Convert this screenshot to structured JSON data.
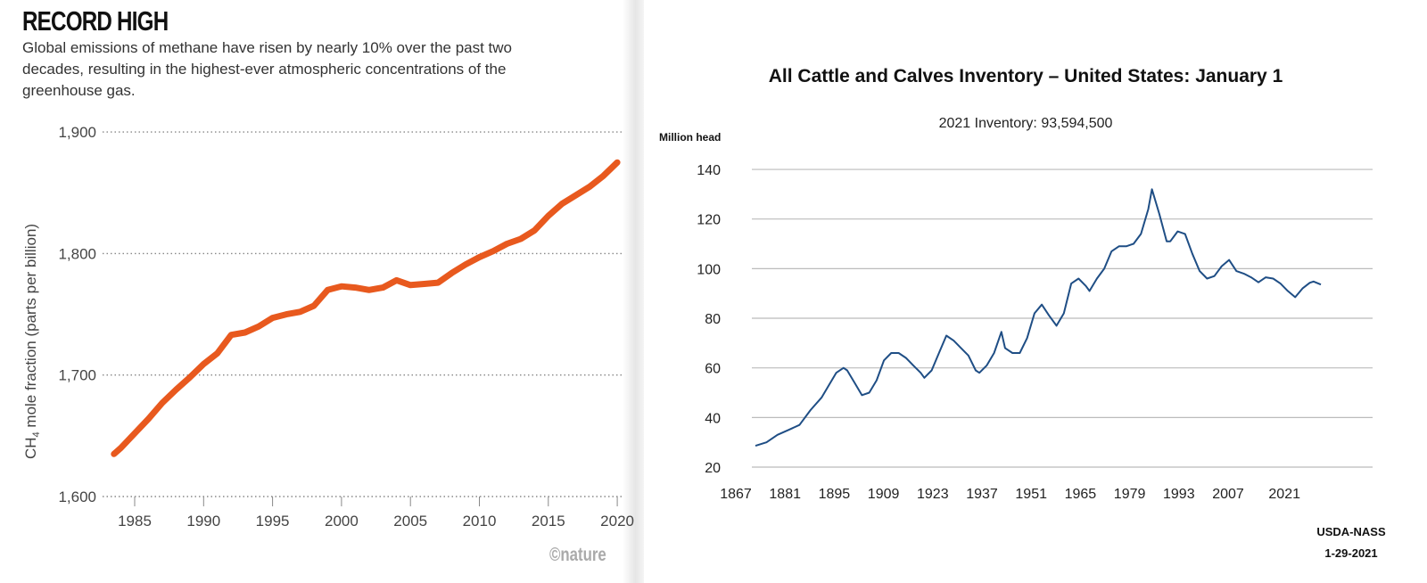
{
  "chart_data": [
    {
      "type": "line",
      "title": "RECORD HIGH",
      "subtitle": "Global emissions of methane have risen by nearly 10% over the past two decades, resulting in the highest-ever atmospheric concentrations of the greenhouse gas.",
      "xlabel": "",
      "ylabel": "CH4 mole fraction (parts per billion)",
      "ylabel_main": "CH",
      "ylabel_sub": "4",
      "ylabel_rest": " mole fraction (parts per billion)",
      "xlim": [
        1982,
        2021
      ],
      "ylim": [
        1600,
        1900
      ],
      "x_ticks": [
        "1985",
        "1990",
        "1995",
        "2000",
        "2005",
        "2010",
        "2015",
        "2020"
      ],
      "x_tick_values": [
        1985,
        1990,
        1995,
        2000,
        2005,
        2010,
        2015,
        2020
      ],
      "y_ticks": [
        "1,600",
        "1,700",
        "1,800",
        "1,900"
      ],
      "y_tick_values": [
        1600,
        1700,
        1800,
        1900
      ],
      "grid": "horizontal dotted",
      "credit": "©nature",
      "line_color": "#e8591e",
      "series": [
        {
          "name": "CH4",
          "x": [
            1983.5,
            1984,
            1985,
            1986,
            1987,
            1988,
            1989,
            1990,
            1991,
            1992,
            1993,
            1994,
            1995,
            1996,
            1997,
            1998,
            1999,
            2000,
            2001,
            2002,
            2003,
            2004,
            2005,
            2006,
            2007,
            2008,
            2009,
            2010,
            2011,
            2012,
            2013,
            2014,
            2015,
            2016,
            2017,
            2018,
            2019,
            2020
          ],
          "y": [
            1635,
            1640,
            1652,
            1664,
            1677,
            1688,
            1698,
            1709,
            1718,
            1733,
            1735,
            1740,
            1747,
            1750,
            1752,
            1757,
            1770,
            1773,
            1772,
            1770,
            1772,
            1778,
            1774,
            1775,
            1776,
            1784,
            1791,
            1797,
            1802,
            1808,
            1812,
            1819,
            1831,
            1841,
            1848,
            1855,
            1864,
            1875
          ]
        }
      ]
    },
    {
      "type": "line",
      "title": "All Cattle and Calves Inventory – United States: January 1",
      "subtitle": "2021 Inventory: 93,594,500",
      "ylabel": "Million head",
      "xlabel": "",
      "xlim": [
        1867,
        2021
      ],
      "ylim": [
        20,
        140
      ],
      "x_ticks": [
        "1867",
        "1881",
        "1895",
        "1909",
        "1923",
        "1937",
        "1951",
        "1965",
        "1979",
        "1993",
        "2007",
        "2021"
      ],
      "y_ticks": [
        "20",
        "40",
        "60",
        "80",
        "100",
        "120",
        "140"
      ],
      "y_tick_values": [
        20,
        40,
        60,
        80,
        100,
        120,
        140
      ],
      "grid": "horizontal solid",
      "source": "USDA-NASS",
      "date": "1-29-2021",
      "line_color": "#1f4e85",
      "series": [
        {
          "name": "All cattle and calves",
          "x": [
            1867,
            1870,
            1873,
            1876,
            1879,
            1882,
            1885,
            1887,
            1889,
            1891,
            1892,
            1894,
            1896,
            1898,
            1900,
            1902,
            1904,
            1906,
            1908,
            1910,
            1912,
            1913,
            1915,
            1917,
            1919,
            1921,
            1923,
            1925,
            1927,
            1928,
            1930,
            1932,
            1934,
            1935,
            1937,
            1939,
            1941,
            1943,
            1945,
            1947,
            1949,
            1951,
            1953,
            1955,
            1957,
            1958,
            1960,
            1962,
            1964,
            1966,
            1968,
            1970,
            1972,
            1974,
            1975,
            1977,
            1979,
            1980,
            1982,
            1984,
            1986,
            1988,
            1990,
            1992,
            1994,
            1996,
            1998,
            2000,
            2002,
            2004,
            2006,
            2008,
            2010,
            2012,
            2014,
            2016,
            2018,
            2019,
            2021
          ],
          "y": [
            28.6,
            30,
            33,
            35,
            37,
            43,
            48,
            53,
            58,
            60,
            59,
            54,
            49,
            50,
            55,
            63,
            66,
            66,
            64,
            61,
            58,
            56,
            59,
            66,
            73,
            71,
            68,
            65,
            59,
            58,
            61,
            66,
            74.5,
            68,
            66,
            66,
            72,
            82,
            85.5,
            81,
            77,
            82,
            94,
            96,
            93,
            91,
            96,
            100,
            107,
            109,
            109,
            110,
            114,
            124,
            132,
            122,
            111,
            111,
            115,
            114,
            106,
            99,
            96,
            97,
            101,
            103.5,
            99,
            98,
            96.5,
            94.5,
            96.5,
            96,
            94,
            91,
            88.5,
            92,
            94.3,
            94.8,
            93.6
          ]
        }
      ]
    }
  ]
}
